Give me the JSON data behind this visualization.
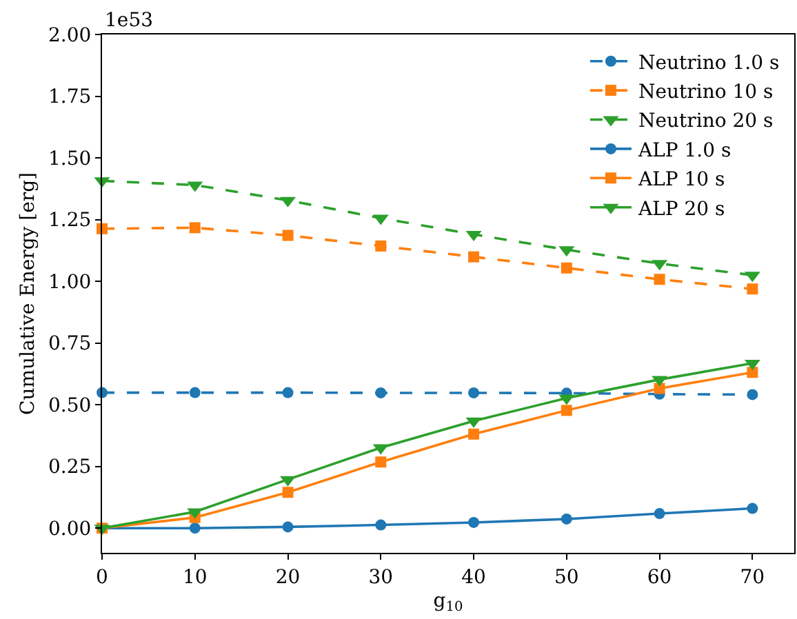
{
  "chart_data": {
    "type": "line",
    "xlabel": "g$_{10}$",
    "ylabel": "Cumulative Energy [erg]",
    "annotations": [
      "1e53"
    ],
    "x": [
      0,
      10,
      20,
      30,
      40,
      50,
      60,
      70
    ],
    "xlim": [
      0,
      74.5
    ],
    "xticks": [
      0,
      10,
      20,
      30,
      40,
      50,
      60,
      70
    ],
    "ylim": [
      -0.1,
      2.0
    ],
    "yticks": [
      {
        "value": 0,
        "label": "0.00"
      },
      {
        "value": 0.25,
        "label": "0.25"
      },
      {
        "value": 0.5,
        "label": "0.50"
      },
      {
        "value": 0.75,
        "label": "0.75"
      },
      {
        "value": 1,
        "label": "1.00"
      },
      {
        "value": 1.25,
        "label": "1.25"
      },
      {
        "value": 1.5,
        "label": "1.50"
      },
      {
        "value": 1.75,
        "label": "1.75"
      },
      {
        "value": 2,
        "label": "2.00"
      }
    ],
    "grid": false,
    "legend": "top right",
    "series": [
      {
        "name": "Neutrino 1.0 s",
        "color": "#1f77b4",
        "marker": "circle",
        "line_style": "dashed",
        "values": [
          0.549,
          0.549,
          0.549,
          0.548,
          0.548,
          0.547,
          0.543,
          0.541
        ]
      },
      {
        "name": "Neutrino 10 s",
        "color": "#ff7f0e",
        "marker": "square",
        "line_style": "dashed",
        "values": [
          1.213,
          1.217,
          1.186,
          1.143,
          1.099,
          1.054,
          1.008,
          0.969
        ]
      },
      {
        "name": "Neutrino 20 s",
        "color": "#2ca02c",
        "marker": "triangle",
        "line_style": "dashed",
        "values": [
          1.407,
          1.39,
          1.328,
          1.256,
          1.19,
          1.128,
          1.072,
          1.025
        ]
      },
      {
        "name": "ALP 1.0 s",
        "color": "#1f77b4",
        "marker": "circle",
        "line_style": "solid",
        "values": [
          0,
          0,
          0.005,
          0.013,
          0.023,
          0.037,
          0.059,
          0.08
        ]
      },
      {
        "name": "ALP 10 s",
        "color": "#ff7f0e",
        "marker": "square",
        "line_style": "solid",
        "values": [
          0,
          0.043,
          0.145,
          0.268,
          0.381,
          0.477,
          0.566,
          0.631
        ]
      },
      {
        "name": "ALP 20 s",
        "color": "#2ca02c",
        "marker": "triangle",
        "line_style": "solid",
        "values": [
          0,
          0.066,
          0.197,
          0.326,
          0.434,
          0.527,
          0.602,
          0.668
        ]
      }
    ]
  }
}
